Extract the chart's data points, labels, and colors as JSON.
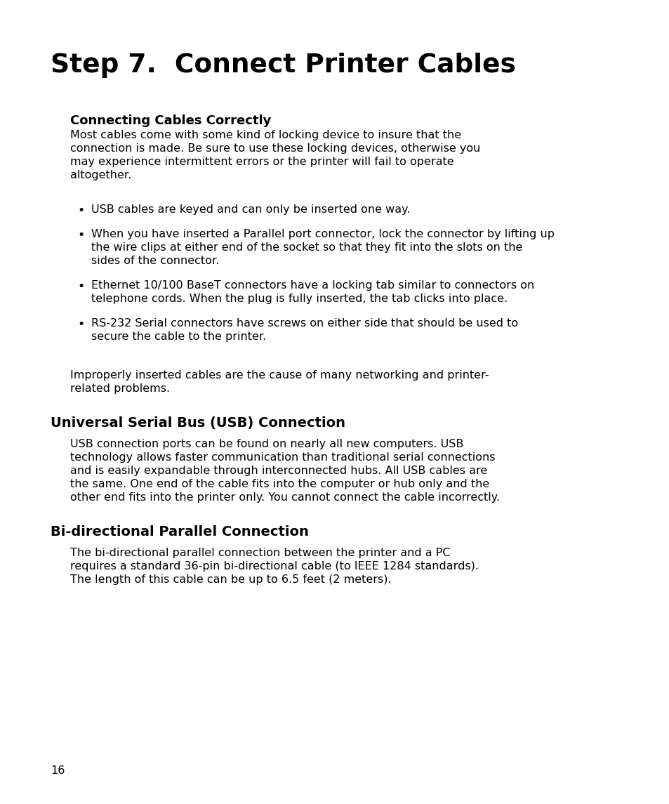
{
  "bg": "#ffffff",
  "tc": "#000000",
  "dpi": 100,
  "fig_w": 9.54,
  "fig_h": 11.45,
  "title": "Step 7.  Connect Printer Cables",
  "h1": "Connecting Cables Correctly",
  "body1_lines": [
    "Most cables come with some kind of locking device to insure that the",
    "connection is made. Be sure to use these locking devices, otherwise you",
    "may experience intermittent errors or the printer will fail to operate",
    "altogether."
  ],
  "bullets": [
    [
      "USB cables are keyed and can only be inserted one way."
    ],
    [
      "When you have inserted a Parallel port connector, lock the connector by lifting up",
      "the wire clips at either end of the socket so that they fit into the slots on the",
      "sides of the connector."
    ],
    [
      "Ethernet 10/100 BaseT connectors have a locking tab similar to connectors on",
      "telephone cords. When the plug is fully inserted, the tab clicks into place."
    ],
    [
      "RS-232 Serial connectors have screws on either side that should be used to",
      "secure the cable to the printer."
    ]
  ],
  "closing_lines": [
    "Improperly inserted cables are the cause of many networking and printer-",
    "related problems."
  ],
  "h2": "Universal Serial Bus (USB) Connection",
  "body2_lines": [
    "USB connection ports can be found on nearly all new computers. USB",
    "technology allows faster communication than traditional serial connections",
    "and is easily expandable through interconnected hubs. All USB cables are",
    "the same. One end of the cable fits into the computer or hub only and the",
    "other end fits into the printer only. You cannot connect the cable incorrectly."
  ],
  "h3": "Bi-directional Parallel Connection",
  "body3_lines": [
    "The bi-directional parallel connection between the printer and a PC",
    "requires a standard 36-pin bi-directional cable (to IEEE 1284 standards).",
    "The length of this cable can be up to 6.5 feet (2 meters)."
  ],
  "page_num": "16"
}
